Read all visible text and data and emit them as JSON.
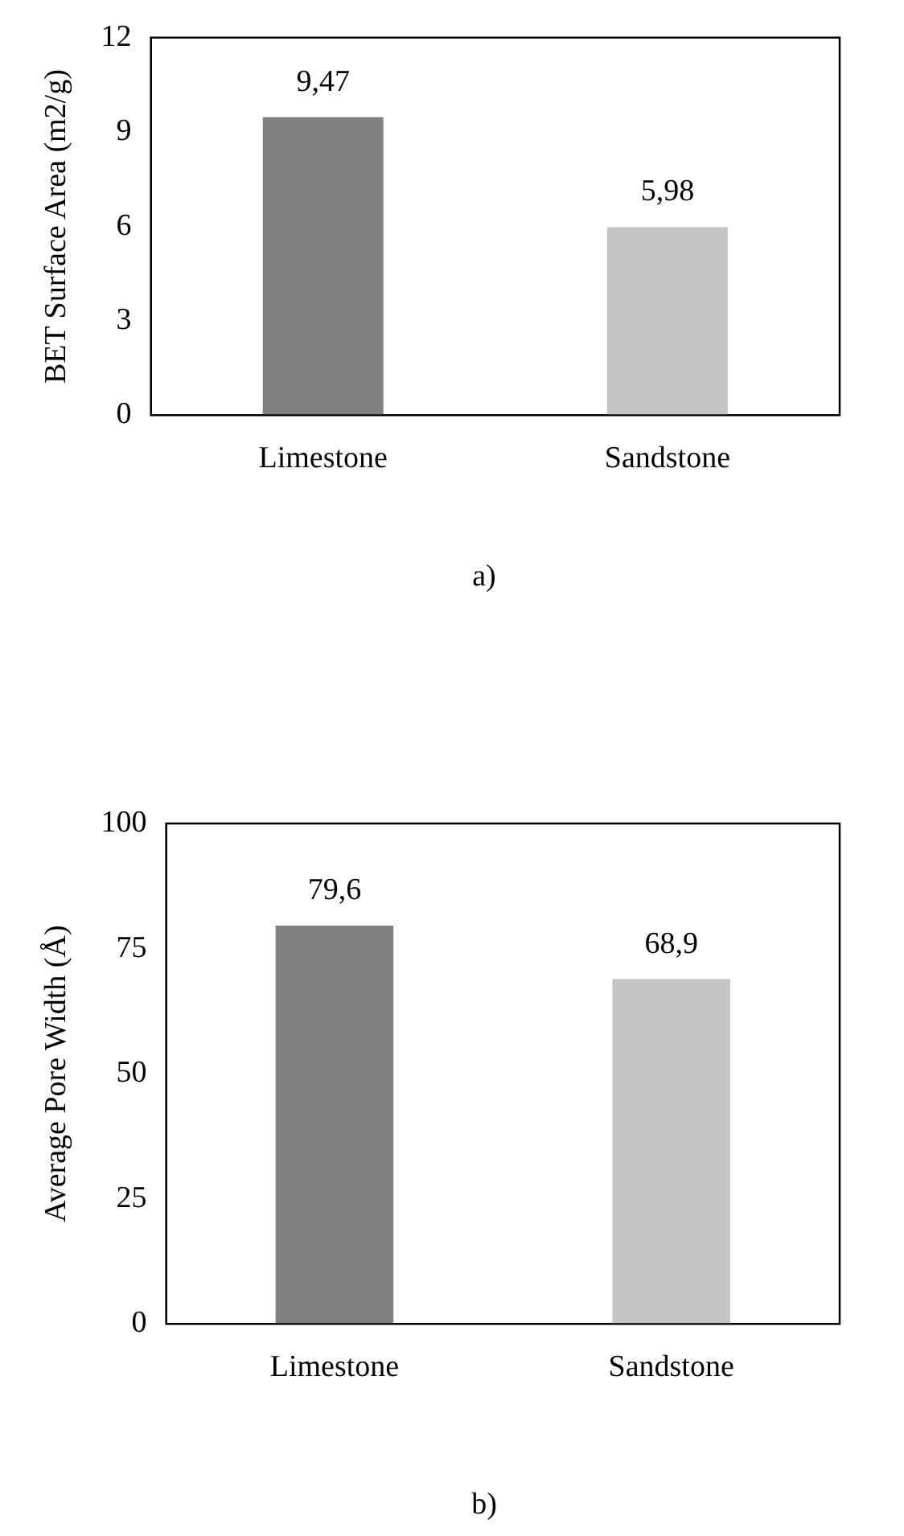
{
  "chart_data": [
    {
      "type": "bar",
      "categories": [
        "Limestone",
        "Sandstone"
      ],
      "values": [
        9.47,
        5.98
      ],
      "colors": [
        "#808080",
        "#c4c4c4"
      ],
      "ylabel": "BET Surface Area (m2/g)",
      "ylim": [
        0,
        12
      ],
      "yticks": [
        0,
        3,
        6,
        9,
        12
      ],
      "value_labels": [
        "9,47",
        "5,98"
      ],
      "annotations": [
        "a)"
      ]
    },
    {
      "type": "bar",
      "categories": [
        "Limestone",
        "Sandstone"
      ],
      "values": [
        79.6,
        68.9
      ],
      "colors": [
        "#808080",
        "#c4c4c4"
      ],
      "ylabel": "Average Pore Width (Å)",
      "ylim": [
        0,
        100
      ],
      "yticks": [
        0,
        25,
        50,
        75,
        100
      ],
      "value_labels": [
        "79,6",
        "68,9"
      ],
      "annotations": [
        "b)"
      ]
    }
  ]
}
